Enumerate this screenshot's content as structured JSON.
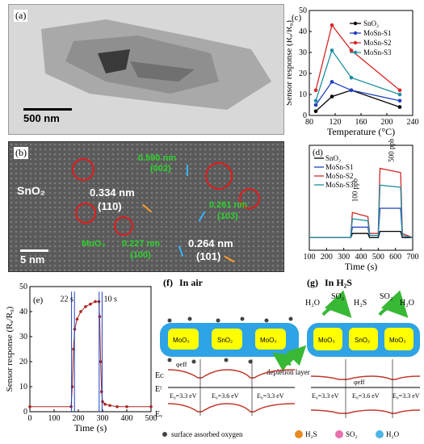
{
  "panel_a": {
    "label": "(a)",
    "scale": "500 nm"
  },
  "panel_b": {
    "label": "(b)",
    "scale": "5 nm",
    "annotations": [
      {
        "t": "SnO₂",
        "cls": "hrtext",
        "k": "sno2"
      },
      {
        "t": "0.334 nm",
        "cls": "hrtext",
        "k": "d334"
      },
      {
        "t": "(110)",
        "cls": "hrtext",
        "k": "p110"
      },
      {
        "t": "0.264 nm",
        "cls": "hrtext",
        "k": "d264"
      },
      {
        "t": "(101)",
        "cls": "hrtext",
        "k": "p101"
      },
      {
        "t": "0.590 nm",
        "cls": "hrgreen",
        "k": "g1"
      },
      {
        "t": "(002)",
        "cls": "hrgreen",
        "k": "g1p"
      },
      {
        "t": "0.261 nm",
        "cls": "hrgreen",
        "k": "g2"
      },
      {
        "t": "(103)",
        "cls": "hrgreen",
        "k": "g2p"
      },
      {
        "t": "MoO₃",
        "cls": "hrgreen",
        "k": "g3"
      },
      {
        "t": "0.227 nm",
        "cls": "hrgreen",
        "k": "g3d"
      },
      {
        "t": "(100)",
        "cls": "hrgreen",
        "k": "g3p"
      }
    ]
  },
  "chart_data": [
    {
      "panel": "(c)",
      "type": "line",
      "xlabel": "Temperature (°C)",
      "ylabel": "Sensor response (Rₐ/R₉)",
      "xlim": [
        80,
        240
      ],
      "ylim": [
        0,
        50
      ],
      "xticks": [
        80,
        120,
        160,
        200,
        240
      ],
      "yticks": [
        0,
        10,
        20,
        30,
        40,
        50
      ],
      "legend": "top-right",
      "series": [
        {
          "name": "SnO₂",
          "color": "#000000",
          "marker": "square",
          "x": [
            90,
            115,
            145,
            220
          ],
          "y": [
            2,
            9,
            12,
            4
          ]
        },
        {
          "name": "MoSn-S1",
          "color": "#1f3fbf",
          "marker": "triangle",
          "x": [
            90,
            115,
            145,
            220
          ],
          "y": [
            5,
            16,
            12,
            7
          ]
        },
        {
          "name": "MoSn-S2",
          "color": "#d62728",
          "marker": "circle",
          "x": [
            90,
            115,
            145,
            220
          ],
          "y": [
            12,
            43,
            31,
            12
          ]
        },
        {
          "name": "MoSn-S3",
          "color": "#1a8fa0",
          "marker": "tri-down",
          "x": [
            90,
            115,
            145,
            220
          ],
          "y": [
            7,
            31,
            18,
            10
          ]
        }
      ]
    },
    {
      "panel": "(d)",
      "type": "line",
      "xlabel": "Time (s)",
      "ylabel": "",
      "xlim": [
        100,
        700
      ],
      "ylim": [
        0,
        5
      ],
      "xticks": [
        100,
        200,
        300,
        400,
        500,
        600,
        700
      ],
      "legend": "top-left",
      "annotations": [
        "100 ppb",
        "500 ppb"
      ],
      "series": [
        {
          "name": "SnO₂",
          "color": "#000000",
          "x": [
            100,
            340,
            350,
            440,
            450,
            500,
            510,
            630,
            640,
            700
          ],
          "y": [
            0.6,
            0.6,
            0.8,
            0.8,
            0.6,
            0.6,
            0.9,
            0.9,
            0.6,
            0.6
          ]
        },
        {
          "name": "MoSn-S1",
          "color": "#1f3fbf",
          "x": [
            100,
            340,
            350,
            440,
            450,
            500,
            510,
            630,
            640,
            700
          ],
          "y": [
            0.6,
            0.6,
            1.1,
            1.1,
            0.7,
            0.7,
            2.0,
            2.0,
            0.7,
            0.6
          ]
        },
        {
          "name": "MoSn-S2",
          "color": "#d62728",
          "x": [
            100,
            340,
            350,
            440,
            450,
            500,
            510,
            630,
            640,
            700
          ],
          "y": [
            0.6,
            0.6,
            1.8,
            1.6,
            0.8,
            0.8,
            3.9,
            3.7,
            0.8,
            0.6
          ]
        },
        {
          "name": "MoSn-S3",
          "color": "#1a8fa0",
          "x": [
            100,
            340,
            350,
            440,
            450,
            500,
            510,
            630,
            640,
            700
          ],
          "y": [
            0.6,
            0.6,
            1.5,
            1.4,
            0.7,
            0.7,
            3.1,
            3.0,
            0.7,
            0.6
          ]
        }
      ]
    },
    {
      "panel": "(e)",
      "type": "line",
      "xlabel": "Time (s)",
      "ylabel": "Sensor response (Rₐ/R₉)",
      "xlim": [
        0,
        500
      ],
      "ylim": [
        0,
        50
      ],
      "xticks": [
        0,
        100,
        200,
        300,
        400,
        500
      ],
      "yticks": [
        0,
        10,
        20,
        30,
        40,
        50
      ],
      "annotations": [
        "22 s",
        "10 s"
      ],
      "series": [
        {
          "name": "",
          "color": "#a8261d",
          "x": [
            0,
            170,
            175,
            180,
            185,
            195,
            210,
            230,
            250,
            270,
            285,
            288,
            292,
            296,
            300,
            310,
            330,
            360,
            400,
            500
          ],
          "y": [
            2,
            2,
            10,
            25,
            33,
            37,
            40,
            42,
            43,
            44,
            44,
            38,
            20,
            8,
            4,
            3,
            2.5,
            2,
            2,
            2
          ]
        }
      ]
    }
  ],
  "panel_f": {
    "label": "(f)",
    "title": "In air",
    "blocks": [
      "MoO₃",
      "SnO₂",
      "MoO₃"
    ],
    "levels": [
      "Eᴄ",
      "Eᶠ",
      "Eᵥ"
    ],
    "bandgaps": [
      "E₉=3.3 eV",
      "E₉=3.6 eV",
      "E₉=3.3 eV"
    ],
    "phi": "φeff",
    "depletion": "depletion layer",
    "legend_text": "surface assorbed oxygen"
  },
  "panel_g": {
    "label": "(g)",
    "title": "In H₂S",
    "blocks": [
      "MoO₃",
      "SnO₂",
      "MoO₃"
    ],
    "bandgaps": [
      "E₉=3.3 eV",
      "E₉=3.6 eV",
      "E₉=3.3 eV"
    ],
    "phi": "φeff",
    "molecules": [
      "H₂O",
      "SO₂",
      "H₂S",
      "SO₂",
      "H₂O"
    ],
    "legend": [
      "H₂S",
      "SO₂",
      "H₂O"
    ]
  },
  "colors": {
    "red": "#d62728",
    "blue": "#1f3fbf",
    "teal": "#1a8fa0",
    "dep": "#2ea3e6",
    "yellow": "#ffff00",
    "green": "#38b835"
  }
}
